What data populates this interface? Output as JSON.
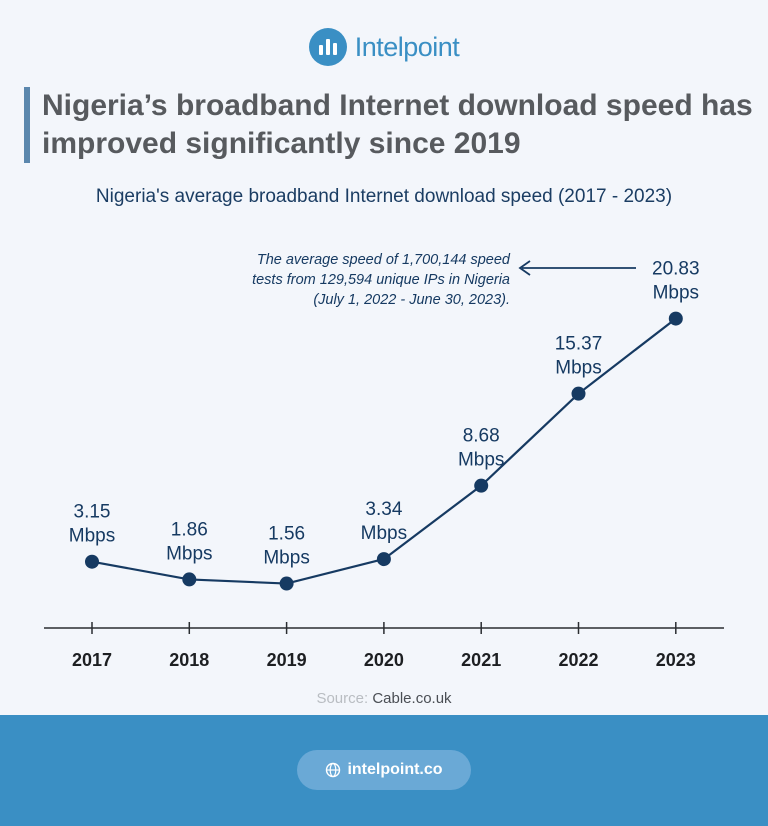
{
  "brand": {
    "name": "Intelpoint",
    "footer_url": "intelpoint.co"
  },
  "headline": "Nigeria’s broadband Internet download speed has improved significantly since 2019",
  "source": {
    "label": "Source:",
    "value": "Cable.co.uk"
  },
  "colors": {
    "accent": "#3a8fc4",
    "line": "#163a62",
    "headline": "#575a5e"
  },
  "chart_data": {
    "type": "line",
    "title": "Nigeria's average broadband Internet download speed (2017 - 2023)",
    "categories": [
      "2017",
      "2018",
      "2019",
      "2020",
      "2021",
      "2022",
      "2023"
    ],
    "values": [
      3.15,
      1.86,
      1.56,
      3.34,
      8.68,
      15.37,
      20.83
    ],
    "data_labels": [
      [
        "3.15",
        "Mbps"
      ],
      [
        "1.86",
        "Mbps"
      ],
      [
        "1.56",
        "Mbps"
      ],
      [
        "3.34",
        "Mbps"
      ],
      [
        "8.68",
        "Mbps"
      ],
      [
        "15.37",
        "Mbps"
      ],
      [
        "20.83",
        "Mbps"
      ]
    ],
    "annotation": [
      "The average speed of 1,700,144 speed",
      "tests from 129,594 unique IPs in Nigeria",
      "(July 1, 2022 - June 30, 2023)."
    ],
    "grid": false
  }
}
